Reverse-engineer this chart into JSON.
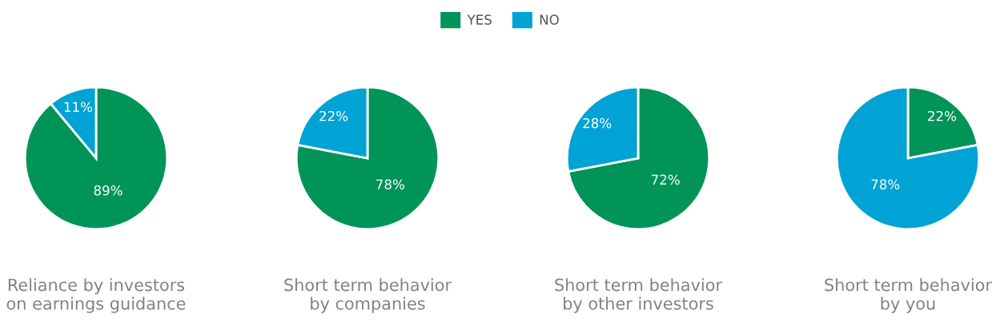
{
  "chart_data": [
    {
      "type": "pie",
      "title": "Reliance by investors\non earnings guidance",
      "categories": [
        "YES",
        "NO"
      ],
      "values": [
        89,
        11
      ],
      "value_labels": [
        "89%",
        "11%"
      ],
      "colors": [
        "#009459",
        "#00a3d3"
      ],
      "legend": "top"
    },
    {
      "type": "pie",
      "title": "Short term behavior\nby companies",
      "categories": [
        null,
        null
      ],
      "values": [
        78,
        22
      ],
      "value_labels": [
        "78%",
        "22%"
      ],
      "colors": [
        "#009459",
        "#00a3d3"
      ]
    },
    {
      "type": "pie",
      "title": "Short term behavior\nby other investors",
      "categories": [
        null,
        null
      ],
      "values": [
        72,
        28
      ],
      "value_labels": [
        "72%",
        "28%"
      ],
      "colors": [
        "#009459",
        "#00a3d3"
      ]
    },
    {
      "type": "pie",
      "title": "Short term behavior\nby you",
      "categories": [
        null,
        null
      ],
      "values": [
        22,
        78
      ],
      "value_labels": [
        "22%",
        "78%"
      ],
      "colors": [
        "#009459",
        "#00a3d3"
      ]
    }
  ]
}
